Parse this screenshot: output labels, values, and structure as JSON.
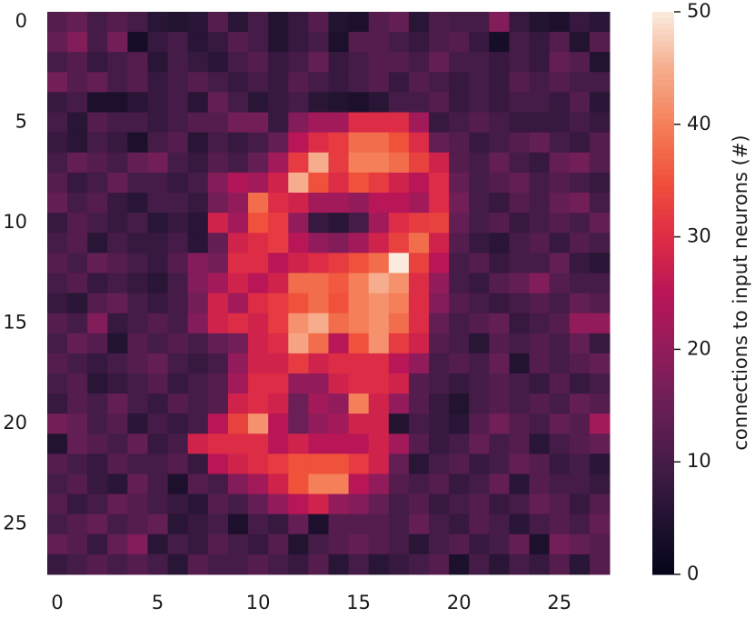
{
  "chart_data": {
    "type": "heatmap",
    "cmap": "rocket",
    "colorbar_label": "connections to input neurons (#)",
    "clim": [
      0,
      50
    ],
    "cticks": [
      0,
      10,
      20,
      30,
      40,
      50
    ],
    "xticks": [
      0,
      5,
      10,
      15,
      20,
      25
    ],
    "yticks": [
      0,
      5,
      10,
      15,
      20,
      25
    ],
    "values": [
      [
        12,
        14,
        10,
        12,
        10,
        6,
        5,
        6,
        12,
        6,
        10,
        5,
        8,
        12,
        5,
        4,
        12,
        14,
        6,
        11,
        10,
        10,
        18,
        8,
        5,
        4,
        8,
        6
      ],
      [
        14,
        18,
        10,
        16,
        3,
        8,
        10,
        6,
        8,
        12,
        10,
        5,
        8,
        10,
        4,
        12,
        12,
        10,
        8,
        11,
        12,
        8,
        3,
        10,
        8,
        12,
        5,
        12
      ],
      [
        10,
        12,
        8,
        10,
        12,
        6,
        10,
        8,
        6,
        10,
        12,
        8,
        10,
        14,
        8,
        10,
        12,
        12,
        10,
        14,
        10,
        10,
        8,
        10,
        8,
        14,
        12,
        5
      ],
      [
        16,
        12,
        14,
        10,
        12,
        8,
        10,
        12,
        10,
        8,
        10,
        8,
        12,
        10,
        8,
        10,
        12,
        8,
        12,
        10,
        8,
        10,
        8,
        12,
        10,
        12,
        10,
        10
      ],
      [
        8,
        10,
        4,
        4,
        6,
        8,
        10,
        6,
        14,
        10,
        6,
        8,
        10,
        6,
        5,
        4,
        6,
        10,
        10,
        12,
        8,
        10,
        8,
        10,
        10,
        8,
        12,
        6
      ],
      [
        10,
        6,
        12,
        10,
        10,
        8,
        10,
        12,
        12,
        16,
        16,
        8,
        18,
        22,
        22,
        30,
        30,
        30,
        22,
        8,
        10,
        12,
        10,
        8,
        8,
        8,
        10,
        8
      ],
      [
        8,
        6,
        10,
        8,
        4,
        10,
        12,
        6,
        10,
        8,
        10,
        14,
        25,
        30,
        32,
        38,
        38,
        35,
        30,
        14,
        12,
        8,
        10,
        12,
        14,
        10,
        8,
        12
      ],
      [
        10,
        14,
        12,
        10,
        14,
        16,
        10,
        8,
        12,
        10,
        14,
        22,
        32,
        45,
        32,
        40,
        40,
        38,
        33,
        28,
        12,
        10,
        14,
        10,
        8,
        14,
        16,
        12
      ],
      [
        12,
        8,
        10,
        14,
        10,
        10,
        8,
        10,
        18,
        24,
        22,
        28,
        45,
        35,
        30,
        35,
        32,
        28,
        25,
        30,
        14,
        10,
        12,
        14,
        10,
        12,
        10,
        8
      ],
      [
        14,
        10,
        12,
        8,
        6,
        10,
        10,
        8,
        16,
        20,
        38,
        30,
        28,
        22,
        22,
        20,
        25,
        25,
        22,
        30,
        16,
        10,
        8,
        12,
        10,
        14,
        16,
        10
      ],
      [
        8,
        12,
        10,
        8,
        10,
        6,
        8,
        6,
        28,
        22,
        35,
        32,
        20,
        8,
        6,
        10,
        22,
        30,
        32,
        33,
        14,
        10,
        12,
        8,
        10,
        12,
        10,
        14
      ],
      [
        10,
        12,
        6,
        10,
        8,
        8,
        10,
        6,
        14,
        28,
        30,
        32,
        25,
        20,
        18,
        22,
        28,
        33,
        38,
        28,
        12,
        8,
        6,
        10,
        12,
        8,
        12,
        10
      ],
      [
        12,
        10,
        14,
        12,
        10,
        8,
        12,
        18,
        16,
        30,
        30,
        25,
        28,
        30,
        32,
        35,
        38,
        50,
        33,
        25,
        10,
        12,
        8,
        10,
        10,
        14,
        8,
        6
      ],
      [
        10,
        12,
        8,
        10,
        8,
        6,
        10,
        18,
        22,
        28,
        25,
        28,
        38,
        38,
        36,
        40,
        45,
        42,
        30,
        20,
        10,
        8,
        12,
        14,
        18,
        12,
        10,
        10
      ],
      [
        8,
        6,
        12,
        14,
        10,
        8,
        10,
        16,
        28,
        22,
        30,
        32,
        35,
        38,
        35,
        40,
        42,
        40,
        30,
        18,
        12,
        10,
        8,
        10,
        12,
        10,
        14,
        12
      ],
      [
        12,
        10,
        18,
        8,
        10,
        12,
        10,
        18,
        28,
        30,
        28,
        32,
        42,
        45,
        38,
        40,
        42,
        38,
        30,
        14,
        10,
        12,
        14,
        8,
        10,
        12,
        20,
        20
      ],
      [
        10,
        14,
        12,
        5,
        12,
        10,
        12,
        10,
        14,
        16,
        28,
        30,
        44,
        38,
        25,
        35,
        42,
        32,
        28,
        12,
        10,
        6,
        12,
        10,
        12,
        10,
        14,
        8
      ],
      [
        12,
        10,
        8,
        10,
        12,
        14,
        10,
        8,
        10,
        20,
        28,
        28,
        32,
        28,
        30,
        30,
        30,
        25,
        20,
        10,
        12,
        10,
        14,
        5,
        12,
        10,
        12,
        14
      ],
      [
        10,
        12,
        6,
        8,
        10,
        12,
        8,
        10,
        12,
        22,
        30,
        30,
        20,
        20,
        28,
        30,
        30,
        28,
        12,
        10,
        8,
        10,
        12,
        10,
        8,
        12,
        8,
        10
      ],
      [
        8,
        12,
        10,
        14,
        10,
        8,
        12,
        10,
        12,
        28,
        30,
        28,
        15,
        22,
        20,
        40,
        28,
        20,
        12,
        8,
        5,
        10,
        12,
        10,
        12,
        10,
        14,
        12
      ],
      [
        16,
        14,
        10,
        12,
        6,
        10,
        8,
        10,
        25,
        33,
        42,
        25,
        15,
        20,
        22,
        28,
        28,
        5,
        10,
        8,
        6,
        12,
        16,
        12,
        10,
        14,
        12,
        22
      ],
      [
        5,
        14,
        12,
        10,
        14,
        8,
        10,
        28,
        30,
        30,
        30,
        25,
        28,
        25,
        25,
        25,
        28,
        22,
        12,
        8,
        10,
        14,
        10,
        12,
        6,
        10,
        12,
        14
      ],
      [
        12,
        10,
        8,
        12,
        10,
        10,
        12,
        8,
        25,
        28,
        30,
        32,
        35,
        35,
        35,
        32,
        28,
        14,
        6,
        10,
        12,
        8,
        10,
        14,
        12,
        8,
        10,
        6
      ],
      [
        10,
        12,
        8,
        6,
        14,
        10,
        4,
        12,
        10,
        18,
        22,
        28,
        35,
        40,
        40,
        25,
        20,
        12,
        10,
        12,
        8,
        10,
        14,
        6,
        12,
        10,
        10,
        8
      ],
      [
        12,
        8,
        10,
        14,
        12,
        10,
        8,
        6,
        12,
        10,
        14,
        20,
        25,
        28,
        20,
        18,
        14,
        10,
        12,
        8,
        10,
        12,
        8,
        10,
        14,
        12,
        8,
        12
      ],
      [
        10,
        12,
        14,
        10,
        12,
        14,
        6,
        8,
        10,
        4,
        10,
        8,
        14,
        4,
        12,
        12,
        12,
        10,
        14,
        10,
        8,
        12,
        10,
        6,
        10,
        12,
        10,
        14
      ],
      [
        14,
        12,
        8,
        14,
        18,
        6,
        10,
        8,
        12,
        10,
        8,
        12,
        5,
        10,
        12,
        14,
        12,
        10,
        6,
        10,
        12,
        8,
        10,
        14,
        4,
        16,
        14,
        12
      ],
      [
        8,
        10,
        12,
        10,
        12,
        10,
        6,
        12,
        10,
        10,
        12,
        10,
        8,
        12,
        6,
        10,
        6,
        8,
        10,
        12,
        4,
        10,
        6,
        10,
        8,
        12,
        6,
        12
      ]
    ]
  }
}
